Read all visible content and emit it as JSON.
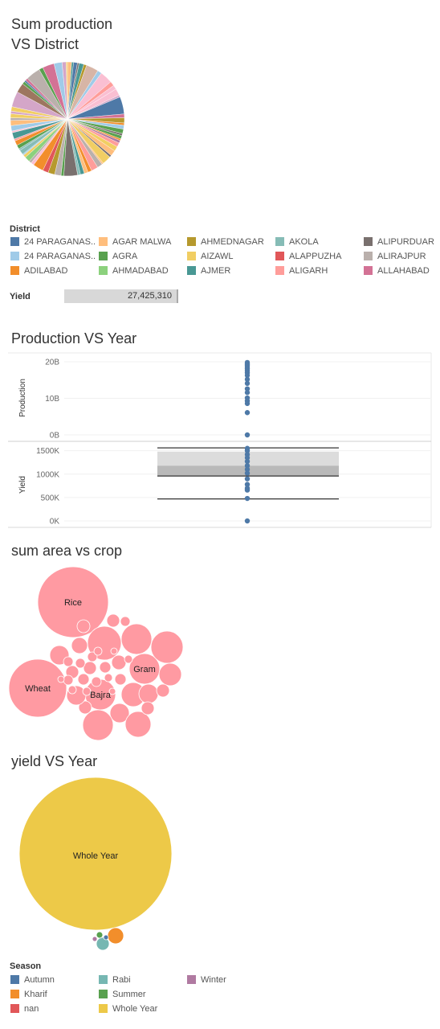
{
  "sum_production": {
    "title_line1": "Sum production",
    "title_line2": "VS District",
    "legend_title": "District",
    "legend": [
      {
        "name": "24 PARAGANAS..",
        "color": "#4e79a7"
      },
      {
        "name": "24 PARAGANAS..",
        "color": "#a0cbe8"
      },
      {
        "name": "ADILABAD",
        "color": "#f28e2b"
      },
      {
        "name": "AGAR MALWA",
        "color": "#ffbe7d"
      },
      {
        "name": "AGRA",
        "color": "#59a14f"
      },
      {
        "name": "AHMADABAD",
        "color": "#8cd17d"
      },
      {
        "name": "AHMEDNAGAR",
        "color": "#b6992d"
      },
      {
        "name": "AIZAWL",
        "color": "#f1ce63"
      },
      {
        "name": "AJMER",
        "color": "#499894"
      },
      {
        "name": "AKOLA",
        "color": "#86bcb6"
      },
      {
        "name": "ALAPPUZHA",
        "color": "#e15759"
      },
      {
        "name": "ALIGARH",
        "color": "#ff9d9a"
      },
      {
        "name": "ALIPURDUAR",
        "color": "#79706e"
      },
      {
        "name": "ALIRAJPUR",
        "color": "#bab0ac"
      },
      {
        "name": "ALLAHABAD",
        "color": "#d37295"
      }
    ],
    "yield_label": "Yield",
    "yield_value": "27,425,310",
    "pie_palette": [
      "#d37295",
      "#fabfd2",
      "#b07aa1",
      "#d4a6c8",
      "#9d7660",
      "#d7b5a6",
      "#4e79a7",
      "#a0cbe8",
      "#f28e2b",
      "#ffbe7d",
      "#59a14f",
      "#8cd17d",
      "#b6992d",
      "#f1ce63",
      "#499894",
      "#86bcb6",
      "#e15759",
      "#ff9d9a",
      "#79706e",
      "#bab0ac"
    ]
  },
  "production_vs_year": {
    "title": "Production VS Year",
    "chart_data": {
      "type": "scatter",
      "panels": [
        {
          "ylabel": "Production",
          "ticks": [
            "20B",
            "10B",
            "0B"
          ],
          "tick_values": [
            20,
            10,
            0
          ],
          "ylim": [
            0,
            20
          ],
          "unit": "B",
          "points": [
            19.8,
            19.4,
            19.0,
            18.6,
            18.1,
            17.6,
            17.0,
            16.3,
            15.2,
            14.1,
            12.6,
            11.6,
            10.1,
            9.3,
            8.6,
            6.1,
            0
          ]
        },
        {
          "ylabel": "Yield",
          "ticks": [
            "1500K",
            "1000K",
            "500K",
            "0K"
          ],
          "tick_values": [
            1500,
            1000,
            500,
            0
          ],
          "ylim": [
            0,
            1700
          ],
          "unit": "K",
          "points": [
            1550,
            1500,
            1420,
            1350,
            1270,
            1180,
            1100,
            1020,
            900,
            780,
            700,
            660,
            480,
            0
          ],
          "box": {
            "whisker_low": 470,
            "q1": 960,
            "median": 1180,
            "q3": 1480,
            "whisker_high": 1560
          }
        }
      ]
    }
  },
  "sum_area_vs_crop": {
    "title": "sum area vs crop",
    "bubble_color": "#ff9aa2",
    "chart_data": {
      "type": "bubble",
      "labels": [
        "Rice",
        "Wheat",
        "Gram",
        "Bajra"
      ]
    }
  },
  "yield_vs_year": {
    "title": "yield VS Year",
    "chart_data": {
      "type": "bubble",
      "big_label": "Whole Year",
      "bubbles": [
        {
          "season": "Whole Year",
          "color": "#edc948"
        },
        {
          "season": "Kharif",
          "color": "#f28e2b"
        },
        {
          "season": "Rabi",
          "color": "#76b7b2"
        },
        {
          "season": "Summer",
          "color": "#59a14f"
        },
        {
          "season": "Winter",
          "color": "#b07aa1"
        },
        {
          "season": "Autumn",
          "color": "#4e79a7"
        }
      ]
    },
    "legend_title": "Season",
    "legend": [
      {
        "name": "Autumn",
        "color": "#4e79a7"
      },
      {
        "name": "Kharif",
        "color": "#f28e2b"
      },
      {
        "name": "nan",
        "color": "#e15759"
      },
      {
        "name": "Rabi",
        "color": "#76b7b2"
      },
      {
        "name": "Summer",
        "color": "#59a14f"
      },
      {
        "name": "Whole Year",
        "color": "#edc948"
      },
      {
        "name": "Winter",
        "color": "#b07aa1"
      }
    ]
  }
}
